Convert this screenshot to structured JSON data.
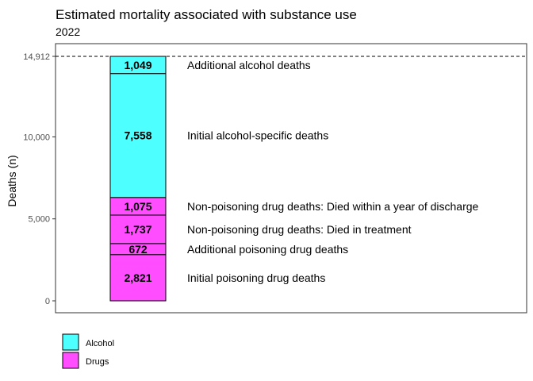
{
  "chart_data": {
    "type": "bar",
    "title": "Estimated mortality associated with substance use",
    "subtitle": "2022",
    "categories": [
      "2022"
    ],
    "xlabel": "",
    "ylabel": "Deaths (n)",
    "ylim": [
      0,
      15000
    ],
    "yticks": [
      0,
      5000,
      10000,
      14912
    ],
    "ytick_labels": [
      "0",
      "5,000",
      "10,000",
      "14,912"
    ],
    "reference_line": {
      "value": 14912,
      "style": "dashed"
    },
    "segments": [
      {
        "label": "Initial poisoning drug deaths",
        "value": 2821,
        "value_label": "2,821",
        "group": "Drugs"
      },
      {
        "label": "Additional poisoning drug deaths",
        "value": 672,
        "value_label": "672",
        "group": "Drugs"
      },
      {
        "label": "Non-poisoning drug deaths: Died in treatment",
        "value": 1737,
        "value_label": "1,737",
        "group": "Drugs"
      },
      {
        "label": "Non-poisoning drug deaths: Died within a year of discharge",
        "value": 1075,
        "value_label": "1,075",
        "group": "Drugs"
      },
      {
        "label": "Initial alcohol-specific deaths",
        "value": 7558,
        "value_label": "7,558",
        "group": "Alcohol"
      },
      {
        "label": "Additional alcohol deaths",
        "value": 1049,
        "value_label": "1,049",
        "group": "Alcohol"
      }
    ],
    "legend": [
      {
        "name": "Alcohol",
        "color": "#4dffff"
      },
      {
        "name": "Drugs",
        "color": "#ff4dff"
      }
    ],
    "legend_position": "bottom-left",
    "grid": false
  }
}
